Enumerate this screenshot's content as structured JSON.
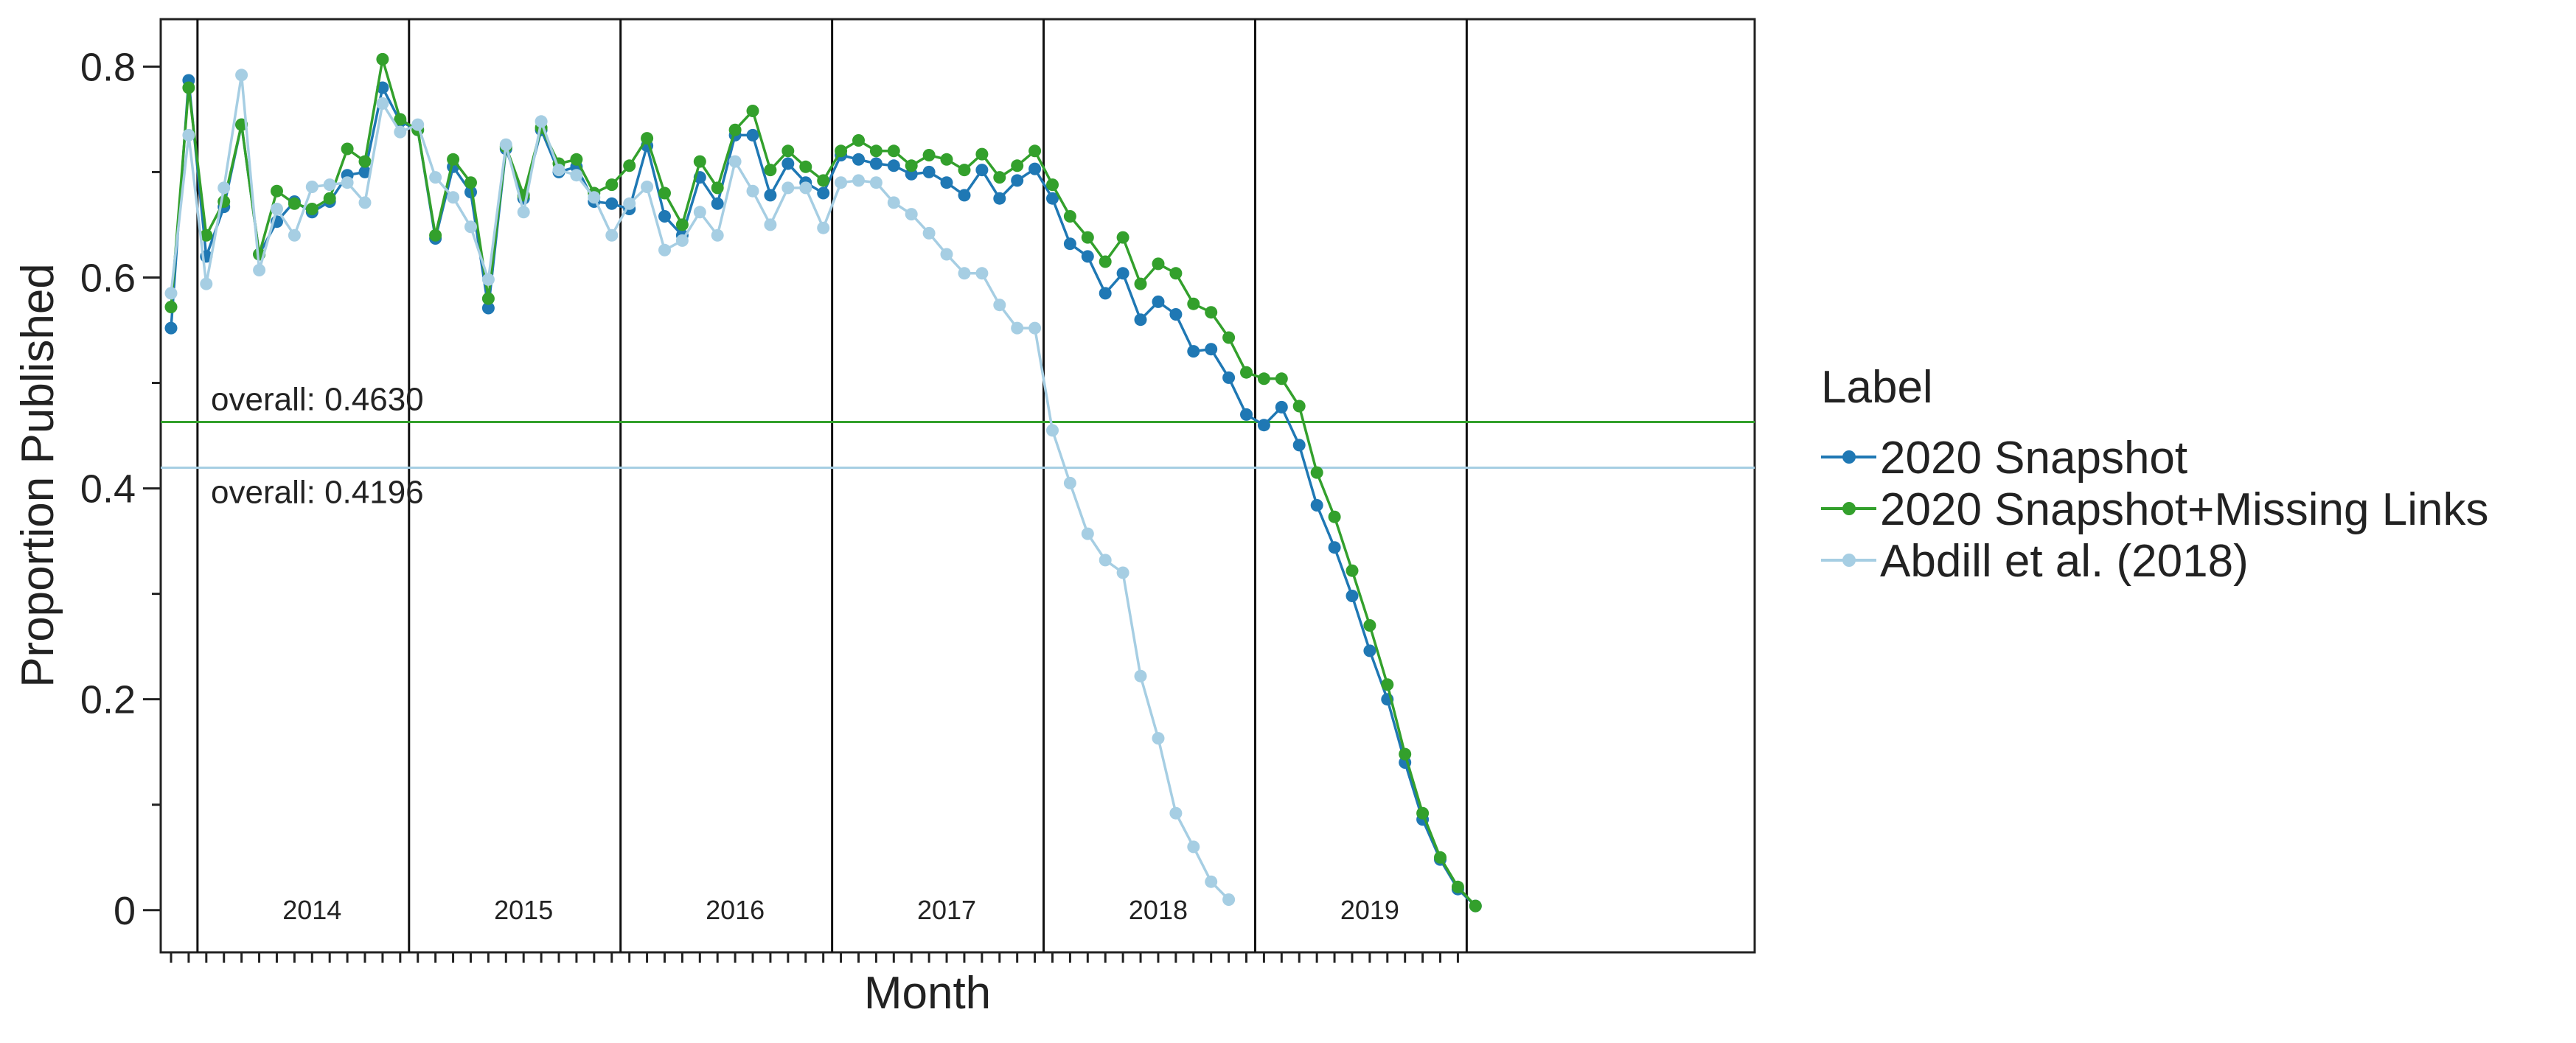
{
  "chart_data": {
    "type": "line",
    "xlabel": "Month",
    "ylabel": "Proportion Published",
    "ylim": [
      -0.04,
      0.845
    ],
    "yticks": [
      {
        "value": 0,
        "label": "0"
      },
      {
        "value": 0.2,
        "label": "0.2"
      },
      {
        "value": 0.4,
        "label": "0.4"
      },
      {
        "value": 0.6,
        "label": "0.6"
      },
      {
        "value": 0.8,
        "label": "0.8"
      }
    ],
    "yminor": [
      0.1,
      0.3,
      0.5,
      0.7
    ],
    "x_months": [
      "2013-11",
      "2019-12"
    ],
    "year_boundaries": [
      "2014-01",
      "2015-01",
      "2016-01",
      "2017-01",
      "2018-01",
      "2019-01",
      "2020-01"
    ],
    "year_labels": [
      {
        "label": "2014",
        "month": "2014-07"
      },
      {
        "label": "2015",
        "month": "2015-07"
      },
      {
        "label": "2016",
        "month": "2016-07"
      },
      {
        "label": "2017",
        "month": "2017-07"
      },
      {
        "label": "2018",
        "month": "2018-07"
      },
      {
        "label": "2019",
        "month": "2019-07"
      }
    ],
    "reference_lines": [
      {
        "value": 0.463,
        "label": "overall: 0.4630",
        "color": "#33a02c",
        "label_position": "above"
      },
      {
        "value": 0.4196,
        "label": "overall: 0.4196",
        "color": "#a6cee3",
        "label_position": "below"
      }
    ],
    "legend": {
      "title": "Label",
      "position": "right"
    },
    "series": [
      {
        "name": "2020 Snapshot",
        "color": "#1f78b4",
        "start": "2013-11",
        "values": [
          0.552,
          0.787,
          0.62,
          0.667,
          0.745,
          0.622,
          0.653,
          0.672,
          0.662,
          0.672,
          0.697,
          0.7,
          0.78,
          0.748,
          0.74,
          0.637,
          0.705,
          0.681,
          0.571,
          0.722,
          0.675,
          0.74,
          0.7,
          0.705,
          0.672,
          0.67,
          0.665,
          0.725,
          0.658,
          0.64,
          0.695,
          0.67,
          0.735,
          0.735,
          0.678,
          0.708,
          0.69,
          0.68,
          0.716,
          0.712,
          0.708,
          0.706,
          0.698,
          0.7,
          0.69,
          0.678,
          0.702,
          0.675,
          0.692,
          0.703,
          0.675,
          0.632,
          0.62,
          0.585,
          0.604,
          0.56,
          0.577,
          0.565,
          0.53,
          0.532,
          0.505,
          0.47,
          0.46,
          0.477,
          0.441,
          0.384,
          0.344,
          0.298,
          0.246,
          0.2,
          0.14,
          0.086,
          0.048,
          0.02,
          0.004
        ]
      },
      {
        "name": "2020 Snapshot+Missing Links",
        "color": "#33a02c",
        "start": "2013-11",
        "values": [
          0.572,
          0.78,
          0.64,
          0.672,
          0.745,
          0.622,
          0.682,
          0.67,
          0.665,
          0.675,
          0.722,
          0.71,
          0.807,
          0.75,
          0.74,
          0.64,
          0.712,
          0.69,
          0.58,
          0.724,
          0.678,
          0.742,
          0.708,
          0.712,
          0.68,
          0.688,
          0.706,
          0.732,
          0.68,
          0.65,
          0.71,
          0.685,
          0.74,
          0.758,
          0.702,
          0.72,
          0.705,
          0.692,
          0.72,
          0.73,
          0.72,
          0.72,
          0.706,
          0.716,
          0.712,
          0.702,
          0.717,
          0.695,
          0.706,
          0.72,
          0.688,
          0.658,
          0.638,
          0.615,
          0.638,
          0.594,
          0.613,
          0.604,
          0.575,
          0.567,
          0.543,
          0.51,
          0.504,
          0.504,
          0.478,
          0.415,
          0.373,
          0.322,
          0.27,
          0.214,
          0.148,
          0.092,
          0.05,
          0.022,
          0.004
        ]
      },
      {
        "name": "Abdill et al. (2018)",
        "color": "#a6cee3",
        "start": "2013-11",
        "values": [
          0.585,
          0.735,
          0.594,
          0.685,
          0.792,
          0.607,
          0.665,
          0.64,
          0.686,
          0.688,
          0.69,
          0.671,
          0.765,
          0.738,
          0.745,
          0.695,
          0.676,
          0.648,
          0.598,
          0.726,
          0.662,
          0.748,
          0.702,
          0.697,
          0.676,
          0.64,
          0.67,
          0.686,
          0.626,
          0.635,
          0.662,
          0.64,
          0.71,
          0.682,
          0.65,
          0.685,
          0.685,
          0.647,
          0.69,
          0.692,
          0.69,
          0.671,
          0.66,
          0.642,
          0.622,
          0.604,
          0.604,
          0.574,
          0.552,
          0.552,
          0.455,
          0.405,
          0.357,
          0.332,
          0.32,
          0.222,
          0.163,
          0.092,
          0.06,
          0.027,
          0.01
        ]
      }
    ]
  }
}
